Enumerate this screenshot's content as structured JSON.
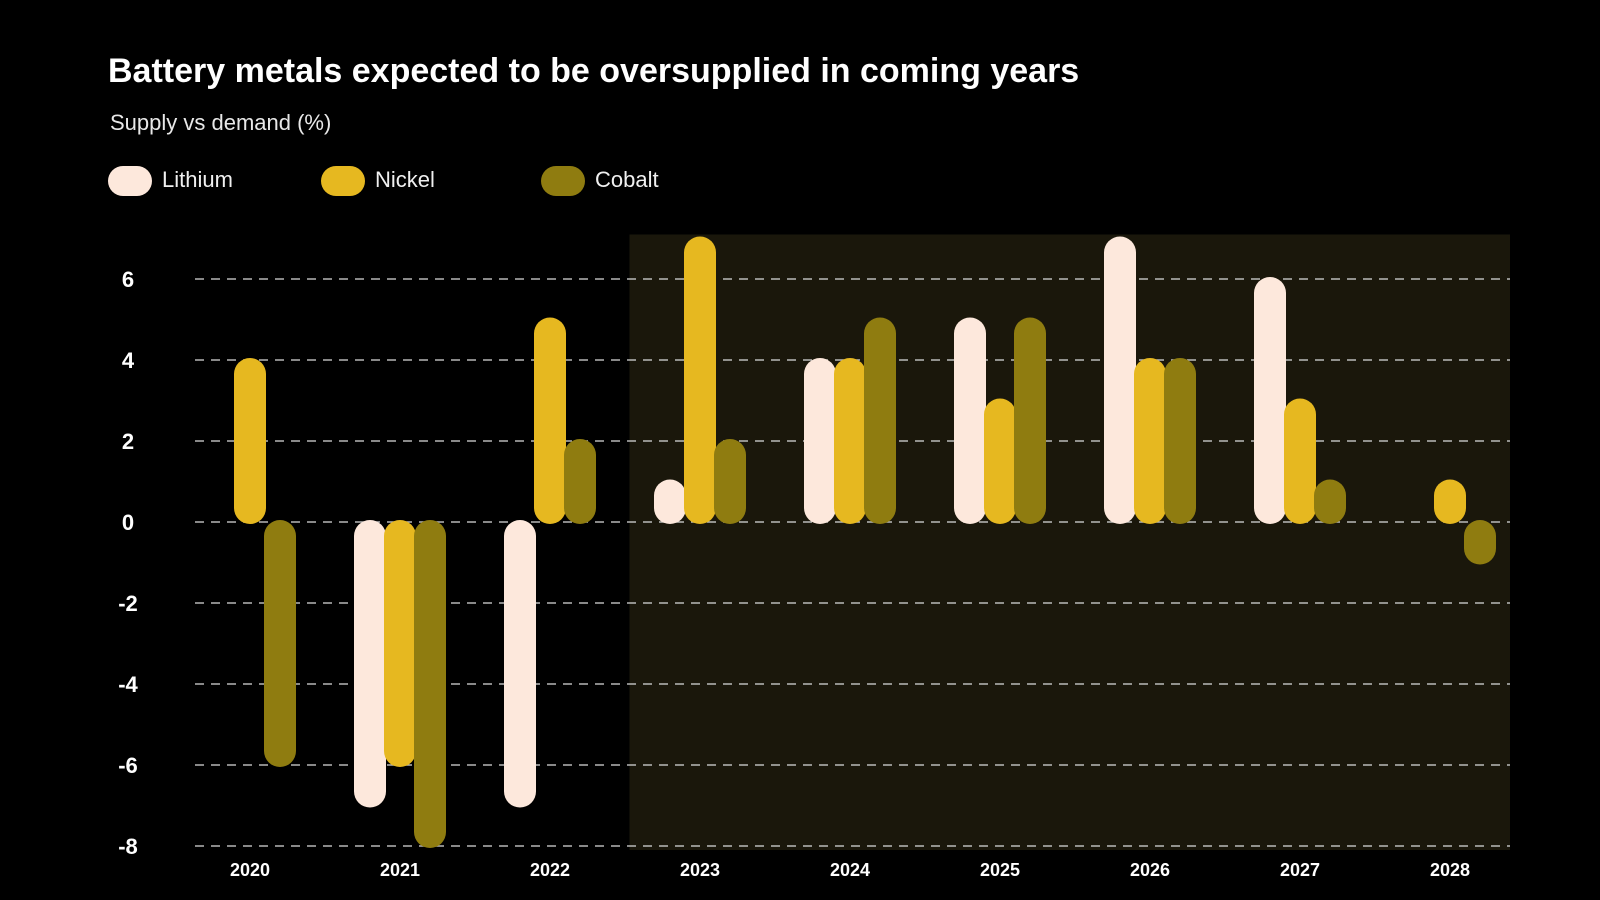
{
  "chart_data": {
    "type": "bar",
    "title": "Battery metals expected to be oversupplied in coming years",
    "subtitle": "Supply vs demand (%)",
    "xlabel": "",
    "ylabel": "",
    "categories": [
      "2020",
      "2021",
      "2022",
      "2023",
      "2024",
      "2025",
      "2026",
      "2027",
      "2028"
    ],
    "series": [
      {
        "name": "Lithium",
        "color": "#fde8dc",
        "values": [
          null,
          -7,
          -7,
          1,
          4,
          5,
          7,
          6,
          null
        ]
      },
      {
        "name": "Nickel",
        "color": "#e6b820",
        "values": [
          4,
          -6,
          5,
          7,
          4,
          3,
          4,
          3,
          1
        ]
      },
      {
        "name": "Cobalt",
        "color": "#8f7c10",
        "values": [
          -6,
          -8,
          2,
          2,
          5,
          5,
          4,
          1,
          -1
        ]
      }
    ],
    "y_ticks": [
      6,
      4,
      2,
      0,
      -2,
      -4,
      -6,
      -8
    ],
    "ylim": [
      -8,
      7
    ],
    "grid": true,
    "gridlines": "dashed",
    "legend_position": "top-left",
    "highlighted_range": [
      "2023",
      "2028"
    ],
    "highlight_color": "#1a170b",
    "background_color": "#000000"
  }
}
